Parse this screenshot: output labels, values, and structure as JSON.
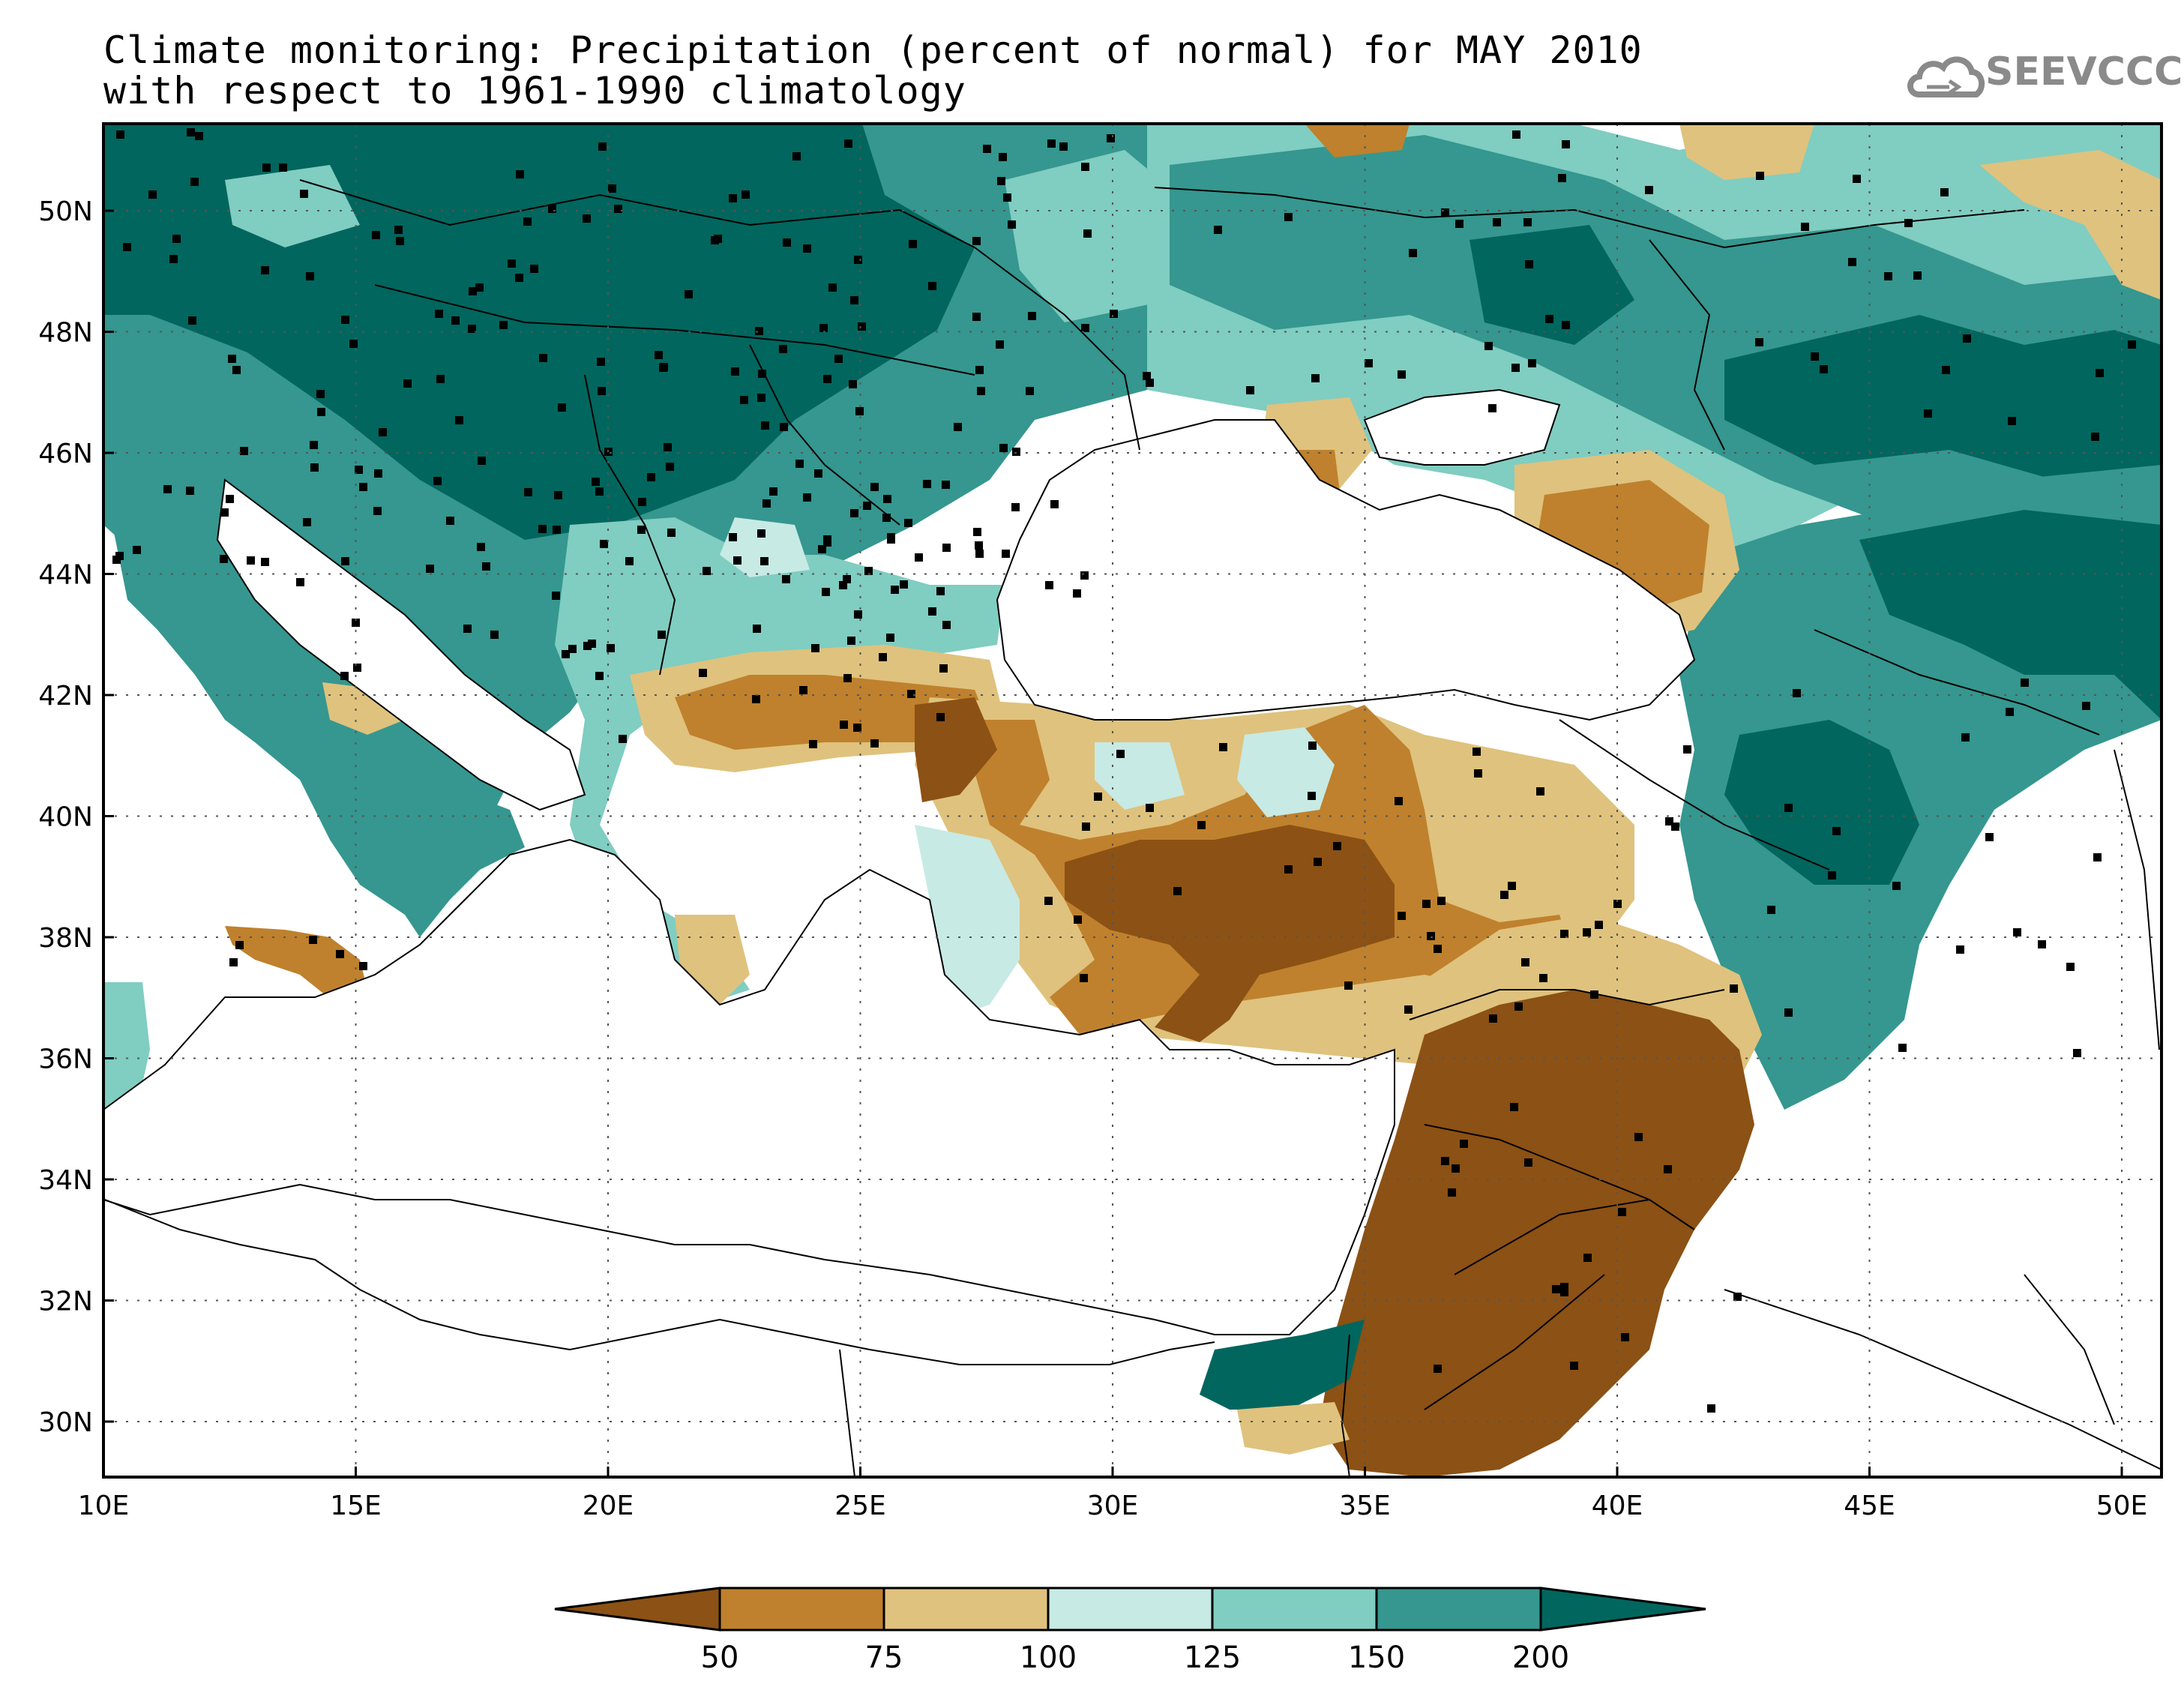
{
  "title": {
    "line1": "Climate monitoring: Precipitation (percent of normal) for MAY 2010",
    "line2": "with respect to 1961-1990 climatology"
  },
  "logo": {
    "text": "SEEVCCC",
    "icon": "cloud-icon"
  },
  "axes": {
    "lat_labels": [
      "30N",
      "32N",
      "34N",
      "36N",
      "38N",
      "40N",
      "42N",
      "44N",
      "46N",
      "48N",
      "50N"
    ],
    "lon_labels": [
      "10E",
      "15E",
      "20E",
      "25E",
      "30E",
      "35E",
      "40E",
      "45E",
      "50E"
    ]
  },
  "colorbar": {
    "labels": [
      "50",
      "75",
      "100",
      "125",
      "150",
      "200"
    ],
    "colors": [
      "#8c5114",
      "#bf812d",
      "#dfc27d",
      "#c7eae5",
      "#80cdc1",
      "#35978f",
      "#01665e"
    ]
  },
  "colors": {
    "very_dry": "#8c5114",
    "dry": "#bf812d",
    "slightly_dry": "#dfc27d",
    "slightly_wet": "#c7eae5",
    "wet": "#80cdc1",
    "very_wet": "#35978f",
    "extremely_wet": "#01665e"
  }
}
